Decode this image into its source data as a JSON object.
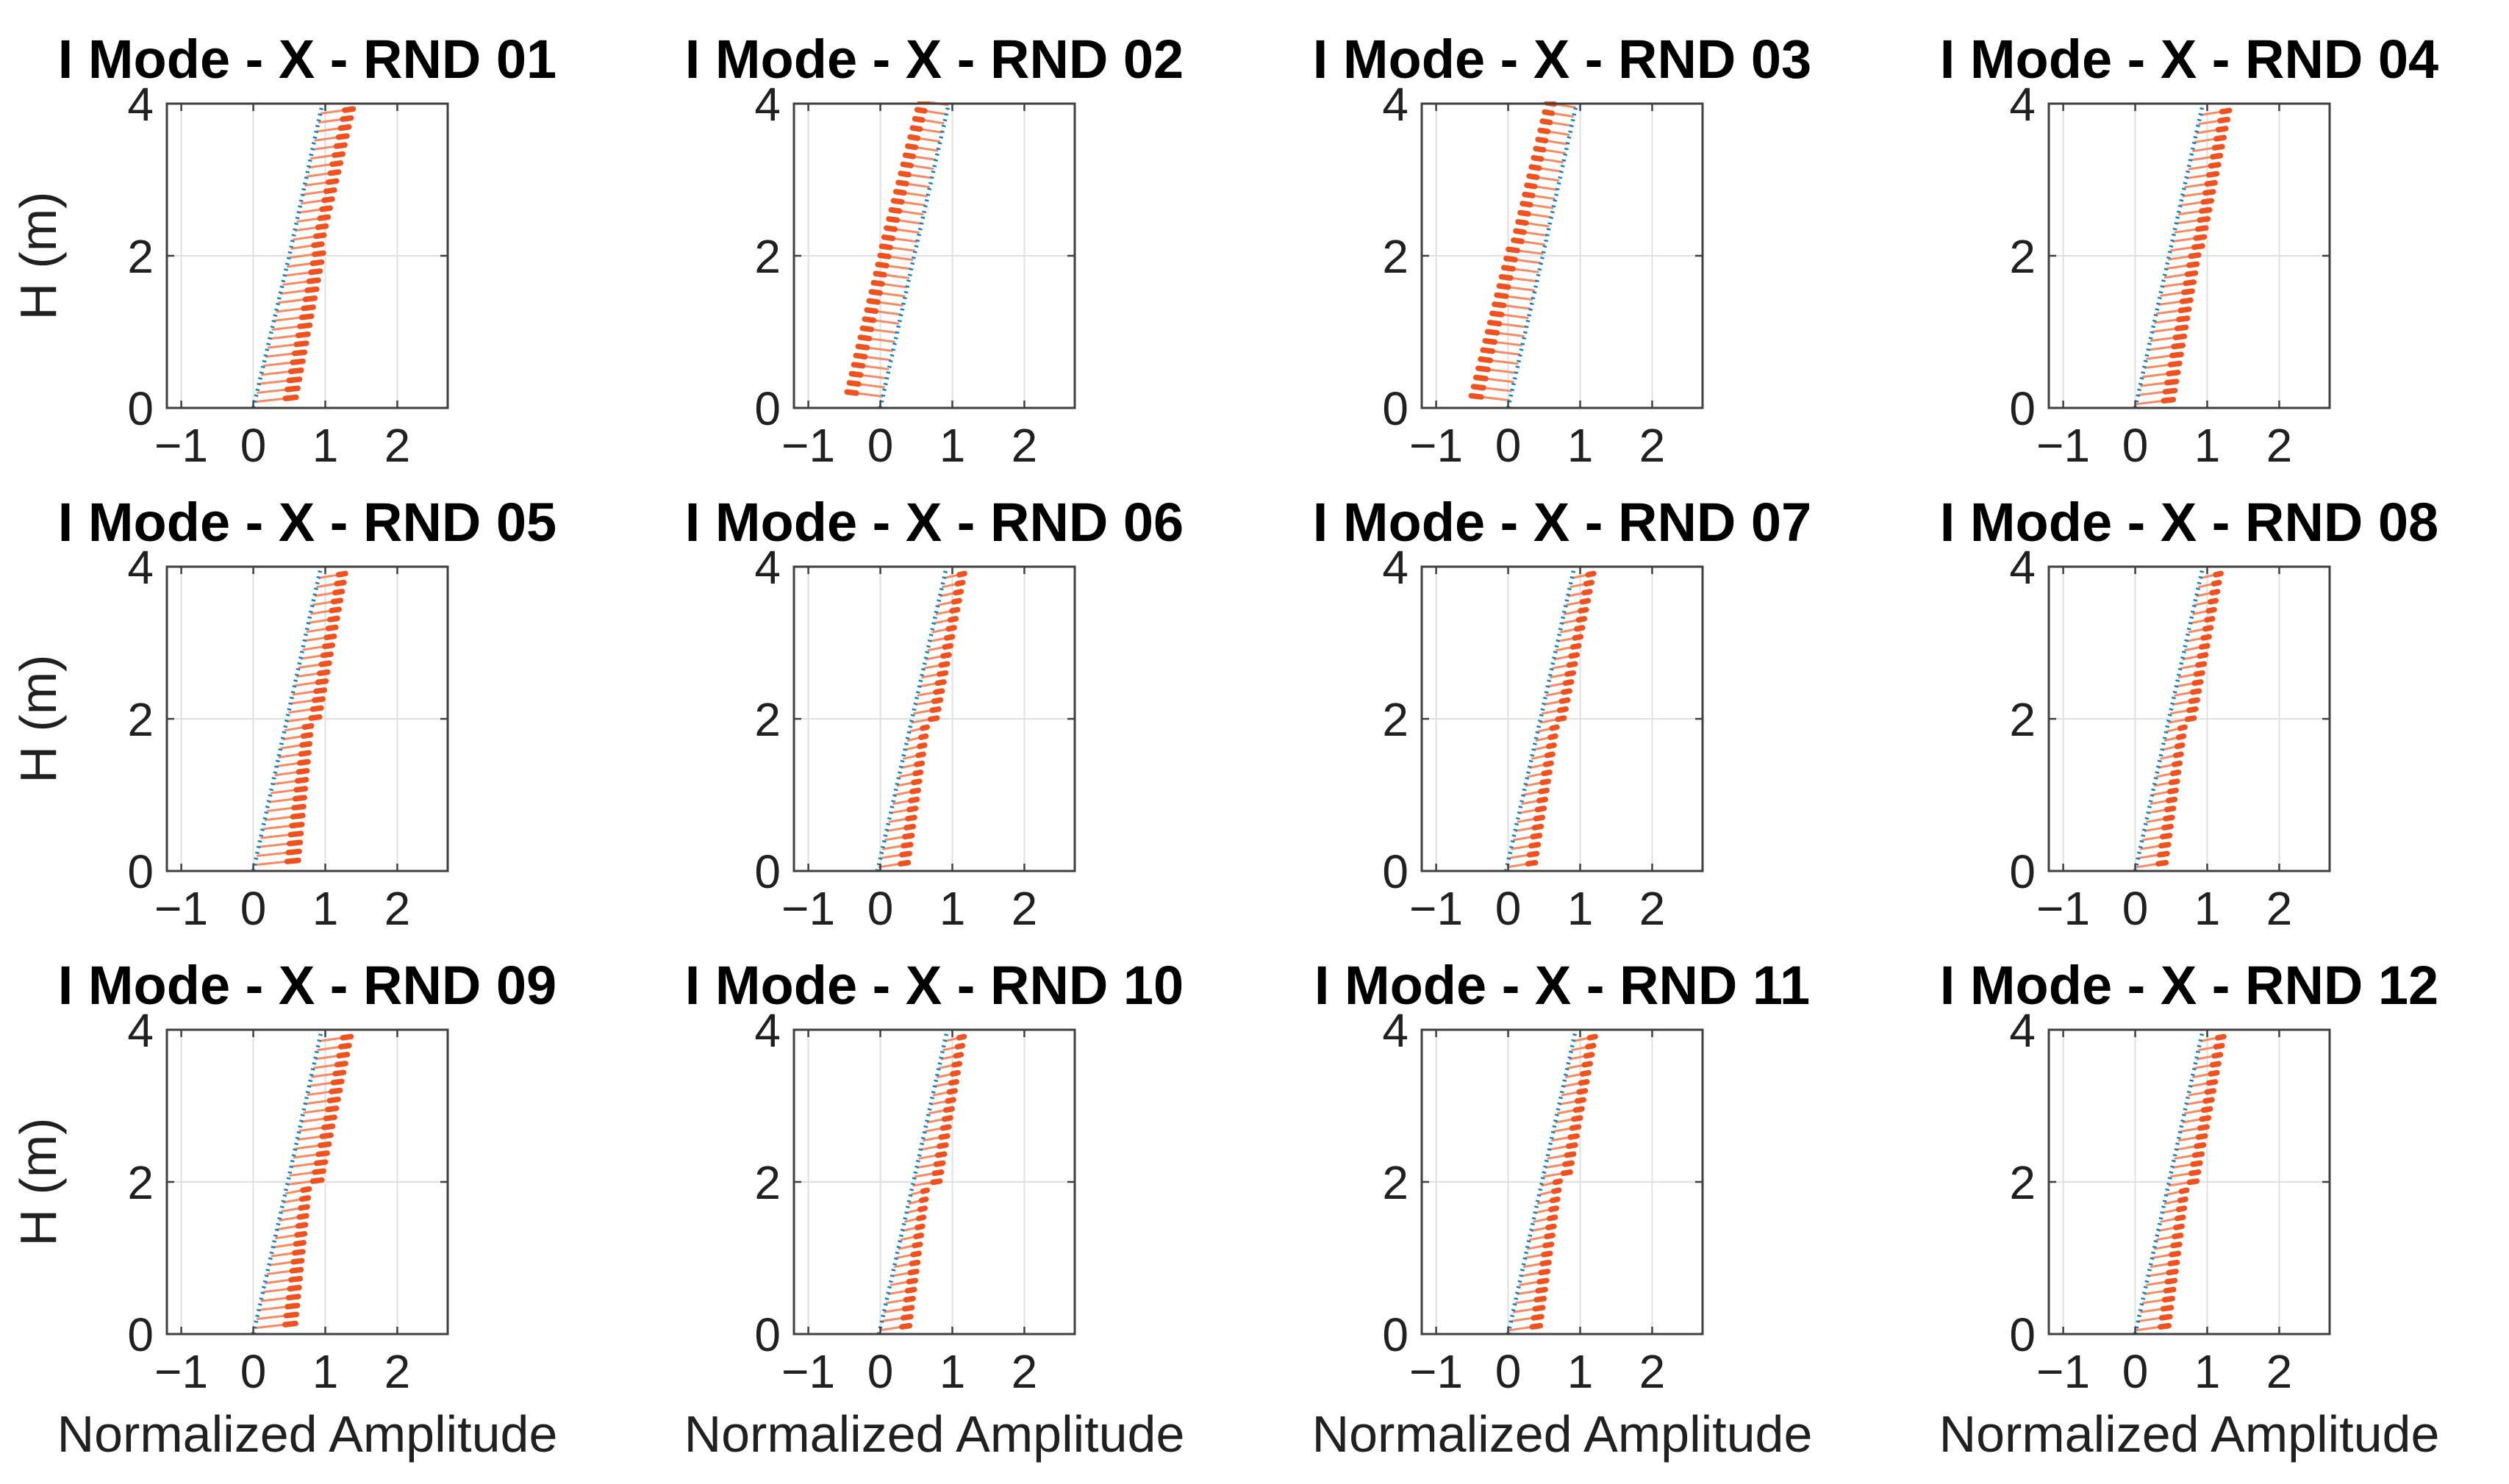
{
  "figure": {
    "background": "#ffffff",
    "description": "3x4 grid of identified first-mode shapes in X direction for 12 random test runs"
  },
  "colors": {
    "mode_line_blue": "#1082C6",
    "whisker_line_orange": "#F78A63",
    "whisker_tip_orange": "#F0521F",
    "grid_line": "#E0E0E0",
    "axes_box": "#3F3F3F",
    "tick_text": "#202020",
    "title_text": "#000000"
  },
  "chart_data": {
    "type": "line",
    "shared": {
      "xlabel": "Normalized Amplitude",
      "ylabel": "H (m)",
      "xticks": [
        -1,
        0,
        1,
        2
      ],
      "yticks": [
        0,
        2,
        4
      ],
      "xtick_labels": [
        "−1",
        "0",
        "1",
        "2"
      ],
      "ytick_labels": [
        "0",
        "2",
        "4"
      ],
      "xlim": [
        -1.2,
        2.7
      ],
      "ylim": [
        0,
        4
      ],
      "grid": true,
      "series_legend": [
        {
          "name": "identified mode shape (blue dotted line)",
          "color": "#1082C6"
        },
        {
          "name": "uncertainty whiskers (orange, tip marker at outer end)",
          "color": "#F0521F"
        }
      ]
    },
    "subplots": [
      {
        "title": "I Mode - X - RND 01",
        "row": 0,
        "col": 0,
        "blue_line": {
          "points": [
            [
              0,
              0
            ],
            [
              0.5,
              2
            ],
            [
              0.96,
              4
            ]
          ]
        },
        "whiskers": {
          "side": "right",
          "h_start": 0.08,
          "h_end": 3.87,
          "count": 33,
          "step_h": 2.0,
          "tilt_m": 0.06,
          "offsets": {
            "bottom": 0.58,
            "below_step": 0.48,
            "above_step": 0.43,
            "top": 0.46
          }
        }
      },
      {
        "title": "I Mode - X - RND 02",
        "row": 0,
        "col": 1,
        "blue_line": {
          "points": [
            [
              0,
              0
            ],
            [
              0.47,
              2
            ],
            [
              0.95,
              4
            ]
          ]
        },
        "whiskers": {
          "side": "left",
          "h_start": 0.15,
          "h_end": 3.98,
          "count": 33,
          "step_h": 2.0,
          "tilt_m": 0.06,
          "offsets": {
            "bottom": -0.5,
            "below_step": -0.46,
            "above_step": -0.47,
            "top": -0.4
          }
        }
      },
      {
        "title": "I Mode - X - RND 03",
        "row": 0,
        "col": 2,
        "blue_line": {
          "points": [
            [
              0,
              0
            ],
            [
              0.48,
              2
            ],
            [
              0.95,
              4
            ]
          ]
        },
        "whiskers": {
          "side": "left",
          "h_start": 0.1,
          "h_end": 3.95,
          "count": 33,
          "step_h": 2.1,
          "tilt_m": 0.06,
          "offsets": {
            "bottom": -0.54,
            "below_step": -0.48,
            "above_step": -0.44,
            "top": -0.4
          }
        }
      },
      {
        "title": "I Mode - X - RND 04",
        "row": 0,
        "col": 3,
        "blue_line": {
          "points": [
            [
              0,
              0
            ],
            [
              0.47,
              2
            ],
            [
              0.94,
              4
            ]
          ]
        },
        "whiskers": {
          "side": "right",
          "h_start": 0.05,
          "h_end": 3.85,
          "count": 33,
          "step_h": 2.0,
          "tilt_m": 0.06,
          "offsets": {
            "bottom": 0.52,
            "below_step": 0.42,
            "above_step": 0.45,
            "top": 0.4
          }
        }
      },
      {
        "title": "I Mode - X - RND 05",
        "row": 1,
        "col": 0,
        "blue_line": {
          "points": [
            [
              0,
              0
            ],
            [
              0.47,
              2
            ],
            [
              0.94,
              4
            ]
          ]
        },
        "whiskers": {
          "side": "right",
          "h_start": 0.08,
          "h_end": 3.85,
          "count": 33,
          "step_h": 1.95,
          "tilt_m": 0.06,
          "offsets": {
            "bottom": 0.62,
            "below_step": 0.36,
            "above_step": 0.46,
            "top": 0.37
          }
        }
      },
      {
        "title": "I Mode - X - RND 06",
        "row": 1,
        "col": 1,
        "blue_line": {
          "points": [
            [
              -0.04,
              0
            ],
            [
              0.44,
              2
            ],
            [
              0.92,
              4
            ]
          ]
        },
        "whiskers": {
          "side": "right",
          "h_start": 0.05,
          "h_end": 3.85,
          "count": 33,
          "step_h": 1.95,
          "tilt_m": 0.06,
          "offsets": {
            "bottom": 0.42,
            "below_step": 0.24,
            "above_step": 0.36,
            "top": 0.28
          }
        }
      },
      {
        "title": "I Mode - X - RND 07",
        "row": 1,
        "col": 2,
        "blue_line": {
          "points": [
            [
              -0.03,
              0
            ],
            [
              0.45,
              2
            ],
            [
              0.92,
              4
            ]
          ]
        },
        "whiskers": {
          "side": "right",
          "h_start": 0.05,
          "h_end": 3.85,
          "count": 33,
          "step_h": 1.95,
          "tilt_m": 0.06,
          "offsets": {
            "bottom": 0.4,
            "below_step": 0.26,
            "above_step": 0.34,
            "top": 0.3
          }
        }
      },
      {
        "title": "I Mode - X - RND 08",
        "row": 1,
        "col": 3,
        "blue_line": {
          "points": [
            [
              0,
              0
            ],
            [
              0.47,
              2
            ],
            [
              0.94,
              4
            ]
          ]
        },
        "whiskers": {
          "side": "right",
          "h_start": 0.05,
          "h_end": 3.85,
          "count": 33,
          "step_h": 1.95,
          "tilt_m": 0.06,
          "offsets": {
            "bottom": 0.42,
            "below_step": 0.25,
            "above_step": 0.36,
            "top": 0.28
          }
        }
      },
      {
        "title": "I Mode - X - RND 09",
        "row": 2,
        "col": 0,
        "blue_line": {
          "points": [
            [
              0,
              0
            ],
            [
              0.48,
              2
            ],
            [
              0.95,
              4
            ]
          ]
        },
        "whiskers": {
          "side": "right",
          "h_start": 0.08,
          "h_end": 3.85,
          "count": 33,
          "step_h": 1.95,
          "tilt_m": 0.06,
          "offsets": {
            "bottom": 0.58,
            "below_step": 0.32,
            "above_step": 0.48,
            "top": 0.44
          }
        }
      },
      {
        "title": "I Mode - X - RND 10",
        "row": 2,
        "col": 1,
        "blue_line": {
          "points": [
            [
              -0.02,
              0
            ],
            [
              0.46,
              2
            ],
            [
              0.93,
              4
            ]
          ]
        },
        "whiskers": {
          "side": "right",
          "h_start": 0.05,
          "h_end": 3.85,
          "count": 33,
          "step_h": 1.95,
          "tilt_m": 0.06,
          "offsets": {
            "bottom": 0.42,
            "below_step": 0.22,
            "above_step": 0.38,
            "top": 0.26
          }
        }
      },
      {
        "title": "I Mode - X - RND 11",
        "row": 2,
        "col": 2,
        "blue_line": {
          "points": [
            [
              0,
              0
            ],
            [
              0.47,
              2
            ],
            [
              0.94,
              4
            ]
          ]
        },
        "whiskers": {
          "side": "right",
          "h_start": 0.05,
          "h_end": 3.85,
          "count": 33,
          "step_h": 2.0,
          "tilt_m": 0.06,
          "offsets": {
            "bottom": 0.44,
            "below_step": 0.26,
            "above_step": 0.38,
            "top": 0.3
          }
        }
      },
      {
        "title": "I Mode - X - RND 12",
        "row": 2,
        "col": 3,
        "blue_line": {
          "points": [
            [
              0,
              0
            ],
            [
              0.47,
              2
            ],
            [
              0.94,
              4
            ]
          ]
        },
        "whiskers": {
          "side": "right",
          "h_start": 0.05,
          "h_end": 3.85,
          "count": 33,
          "step_h": 1.9,
          "tilt_m": 0.06,
          "offsets": {
            "bottom": 0.46,
            "below_step": 0.28,
            "above_step": 0.4,
            "top": 0.32
          }
        }
      }
    ]
  }
}
